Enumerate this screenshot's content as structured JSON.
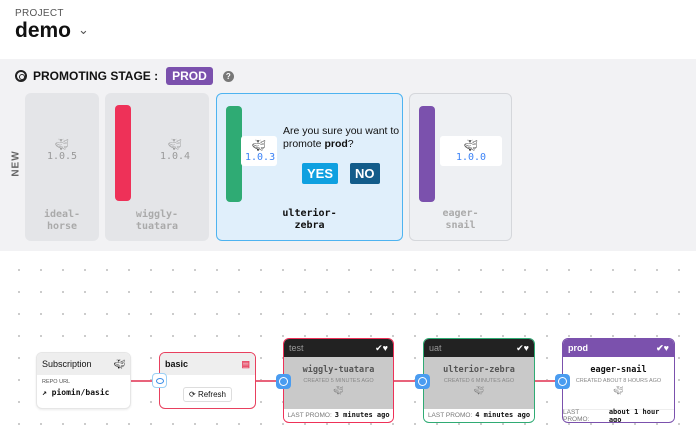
{
  "project": {
    "label": "PROJECT",
    "name": "demo"
  },
  "promotion": {
    "title": "PROMOTING STAGE :",
    "stage": "PROD",
    "help": "?",
    "lane_label": "NEW",
    "freight": [
      {
        "name": "ideal-horse",
        "version": "1.0.5",
        "color": null
      },
      {
        "name": "wiggly-tuatara",
        "version": "1.0.4",
        "color": "#ee3158"
      },
      {
        "name": "ulterior-zebra",
        "version": "1.0.3",
        "color": "#2fab74",
        "selected": true
      },
      {
        "name": "eager-snail",
        "version": "1.0.0",
        "color": "#7b51ad"
      }
    ],
    "confirm": {
      "question_pre": "Are you sure you want to promote ",
      "question_stage": "prod",
      "question_post": "?",
      "yes": "YES",
      "no": "NO"
    }
  },
  "graph": {
    "subscription": {
      "title": "Subscription",
      "repo_label": "REPO URL",
      "repo": "piomin/basic"
    },
    "warehouse": {
      "name": "basic",
      "refresh": "Refresh"
    },
    "stages": [
      {
        "name": "test",
        "freight": "wiggly-tuatara",
        "created": "CREATED 5 MINUTES AGO",
        "last_label": "LAST PROMO:",
        "last": "3 minutes ago",
        "border": "#ee3158",
        "header": "#222"
      },
      {
        "name": "uat",
        "freight": "ulterior-zebra",
        "created": "CREATED 6 MINUTES AGO",
        "last_label": "LAST PROMO:",
        "last": "4 minutes ago",
        "border": "#2fab74",
        "header": "#222"
      },
      {
        "name": "prod",
        "freight": "eager-snail",
        "created": "CREATED ABOUT 8 HOURS AGO",
        "last_label": "LAST PROMO:",
        "last": "about 1 hour ago",
        "border": "#7b51ad",
        "header": "#7b51ad"
      }
    ]
  }
}
